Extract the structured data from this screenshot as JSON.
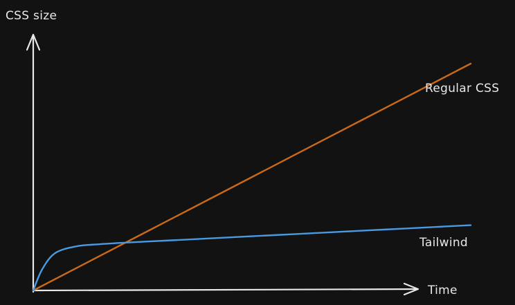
{
  "chart_data": {
    "type": "line",
    "title": "",
    "xlabel": "Time",
    "ylabel": "CSS size",
    "grid": false,
    "legend": "none",
    "xlim": [
      0,
      1
    ],
    "ylim": [
      0,
      1
    ],
    "series": [
      {
        "name": "Regular CSS",
        "color": "#c96a1a",
        "x": [
          0,
          0.25,
          0.5,
          0.75,
          1.0
        ],
        "y": [
          0,
          0.205,
          0.41,
          0.615,
          0.82
        ]
      },
      {
        "name": "Tailwind",
        "color": "#4a9ae2",
        "x": [
          0,
          0.02,
          0.05,
          0.1,
          0.15,
          0.2,
          0.3,
          0.4,
          0.5,
          0.6,
          0.7,
          0.8,
          0.9,
          1.0
        ],
        "y": [
          0,
          0.075,
          0.135,
          0.16,
          0.167,
          0.172,
          0.18,
          0.188,
          0.196,
          0.204,
          0.212,
          0.22,
          0.228,
          0.236
        ]
      }
    ]
  },
  "colors": {
    "background": "#121212",
    "axis": "#e8e8e8",
    "text": "#e8e8e8"
  }
}
